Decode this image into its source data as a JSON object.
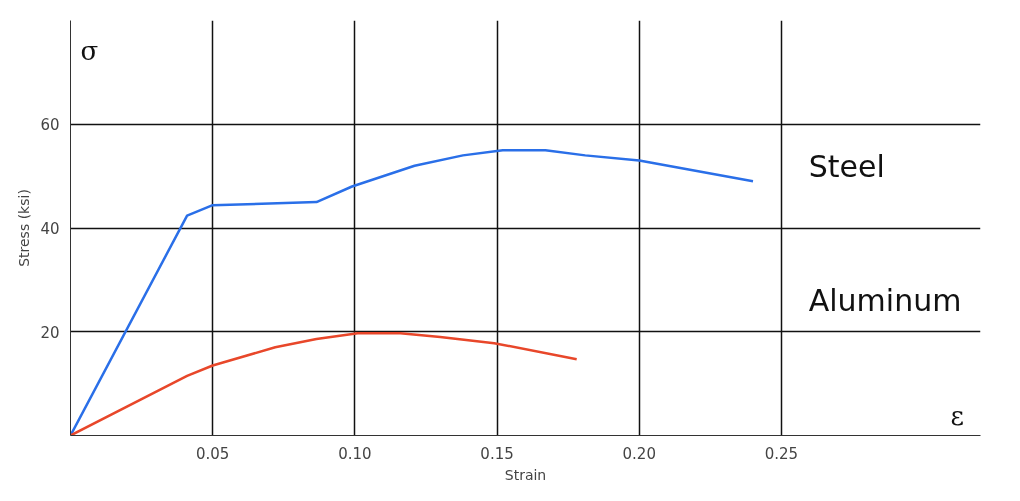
{
  "chart_data": {
    "type": "line",
    "xlabel": "Strain",
    "ylabel": "Stress (ksi)",
    "annotations": [
      "σ",
      "ε"
    ],
    "series": [
      {
        "name": "Steel",
        "color": "#2a6fe8",
        "x": [
          0,
          0.041,
          0.05,
          0.0865,
          0.099,
          0.121,
          0.138,
          0.152,
          0.167,
          0.181,
          0.2,
          0.24
        ],
        "values": [
          0,
          42.4,
          44.4,
          45,
          48,
          52,
          54,
          55,
          55,
          54,
          53,
          49
        ]
      },
      {
        "name": "Aluminum",
        "color": "#e8472a",
        "x": [
          0,
          0.041,
          0.05,
          0.072,
          0.0865,
          0.101,
          0.116,
          0.13,
          0.149,
          0.178
        ],
        "values": [
          0,
          11.5,
          13.5,
          17,
          18.6,
          19.7,
          19.7,
          19,
          17.8,
          14.7
        ]
      }
    ],
    "xlim": [
      0,
      0.32
    ],
    "ylim": [
      0,
      80
    ],
    "xticks": [
      0.05,
      {
        "value": 0.1,
        "label": "0.10"
      },
      0.15,
      {
        "value": 0.2,
        "label": "0.20"
      },
      0.25
    ],
    "yticks": [
      20,
      40,
      60
    ],
    "grid": true,
    "legend": false
  }
}
